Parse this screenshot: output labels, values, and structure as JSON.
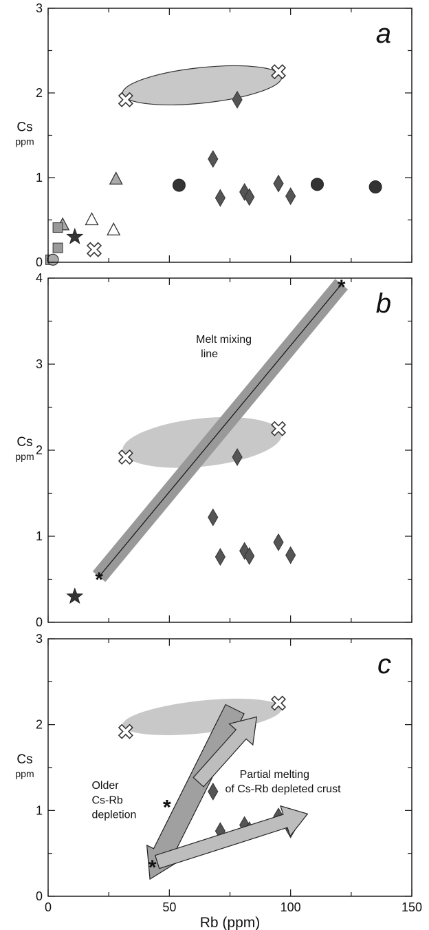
{
  "chart_data": [
    {
      "panel": "a",
      "type": "scatter",
      "xlim": [
        0,
        150
      ],
      "ylim": [
        0,
        3
      ],
      "xticks": [
        0,
        50,
        100,
        150
      ],
      "yticks": [
        0,
        1,
        2,
        3
      ],
      "ylabel": "Cs",
      "ylabel_unit": "ppm",
      "xlabel": "",
      "ellipse": {
        "center": [
          63.5,
          2.09
        ],
        "semi_axes": [
          33,
          0.21
        ],
        "angle_deg": 6,
        "color": "#c8c8c8"
      },
      "series": [
        {
          "marker": "x-cross",
          "points": [
            [
              32,
              1.92
            ],
            [
              95,
              2.25
            ],
            [
              19,
              0.15
            ]
          ]
        },
        {
          "marker": "diamond-dark",
          "points": [
            [
              78,
              1.92
            ],
            [
              68,
              1.22
            ],
            [
              71,
              0.76
            ],
            [
              81,
              0.83
            ],
            [
              83,
              0.77
            ],
            [
              95,
              0.93
            ],
            [
              100,
              0.78
            ]
          ]
        },
        {
          "marker": "circle-dark",
          "points": [
            [
              54,
              0.91
            ],
            [
              111,
              0.92
            ],
            [
              135,
              0.89
            ]
          ]
        },
        {
          "marker": "triangle-grey",
          "points": [
            [
              28,
              0.98
            ],
            [
              6,
              0.44
            ]
          ]
        },
        {
          "marker": "triangle-open",
          "points": [
            [
              18,
              0.5
            ],
            [
              27,
              0.38
            ]
          ]
        },
        {
          "marker": "square-grey",
          "points": [
            [
              4,
              0.41
            ],
            [
              4,
              0.17
            ],
            [
              1,
              0.03
            ]
          ]
        },
        {
          "marker": "circle-grey",
          "points": [
            [
              2,
              0.03
            ]
          ]
        },
        {
          "marker": "star-dark",
          "points": [
            [
              11,
              0.3
            ]
          ]
        }
      ]
    },
    {
      "panel": "b",
      "type": "scatter",
      "xlim": [
        0,
        150
      ],
      "ylim": [
        0,
        4
      ],
      "xticks": [
        0,
        50,
        100,
        150
      ],
      "yticks": [
        0,
        1,
        2,
        3,
        4
      ],
      "ylabel": "Cs",
      "ylabel_unit": "ppm",
      "xlabel": "",
      "ellipse": {
        "center": [
          63.5,
          2.09
        ],
        "semi_axes": [
          33,
          0.28
        ],
        "angle_deg": 6,
        "color": "#c8c8c8"
      },
      "mixing_line": {
        "from": [
          21,
          0.53
        ],
        "to": [
          121,
          3.93
        ],
        "label_line1": "Melt mixing",
        "label_line2": "line"
      },
      "series": [
        {
          "marker": "x-cross",
          "points": [
            [
              32,
              1.92
            ],
            [
              95,
              2.25
            ]
          ]
        },
        {
          "marker": "diamond-dark",
          "points": [
            [
              78,
              1.92
            ],
            [
              68,
              1.22
            ],
            [
              71,
              0.76
            ],
            [
              81,
              0.83
            ],
            [
              83,
              0.77
            ],
            [
              95,
              0.93
            ],
            [
              100,
              0.78
            ]
          ]
        },
        {
          "marker": "star-dark",
          "points": [
            [
              11,
              0.3
            ]
          ]
        },
        {
          "marker": "asterisk",
          "points": [
            [
              21,
              0.53
            ],
            [
              121,
              3.93
            ]
          ]
        }
      ]
    },
    {
      "panel": "c",
      "type": "scatter",
      "xlim": [
        0,
        150
      ],
      "ylim": [
        0,
        3
      ],
      "xticks": [
        0,
        50,
        100,
        150
      ],
      "yticks": [
        0,
        1,
        2,
        3
      ],
      "ylabel": "Cs",
      "ylabel_unit": "ppm",
      "xlabel": "Rb (ppm)",
      "ellipse": {
        "center": [
          63.5,
          2.09
        ],
        "semi_axes": [
          33,
          0.19
        ],
        "angle_deg": 6,
        "color": "#c8c8c8"
      },
      "annotations": {
        "older_line1": "Older",
        "older_line2": "Cs-Rb",
        "older_line3": "depletion",
        "partial_line1": "Partial melting",
        "partial_line2": "of Cs-Rb depleted crust"
      },
      "series": [
        {
          "marker": "x-cross",
          "points": [
            [
              32,
              1.92
            ],
            [
              95,
              2.25
            ]
          ]
        },
        {
          "marker": "diamond-dark",
          "points": [
            [
              78,
              1.92
            ],
            [
              68,
              1.22
            ],
            [
              71,
              0.76
            ],
            [
              81,
              0.83
            ],
            [
              83,
              0.77
            ],
            [
              95,
              0.93
            ],
            [
              100,
              0.78
            ]
          ]
        },
        {
          "marker": "asterisk",
          "points": [
            [
              49,
              1.07
            ],
            [
              43,
              0.37
            ]
          ]
        }
      ]
    }
  ],
  "colors": {
    "diamond": "#555555",
    "circle": "#333333",
    "triangle_grey": "#aaaaaa",
    "square_grey": "#999999",
    "star": "#333333",
    "ellipse": "#c8c8c8",
    "mixing_band": "#999999",
    "arrow_dark": "#a0a0a0",
    "arrow_light": "#bdbdbd"
  }
}
